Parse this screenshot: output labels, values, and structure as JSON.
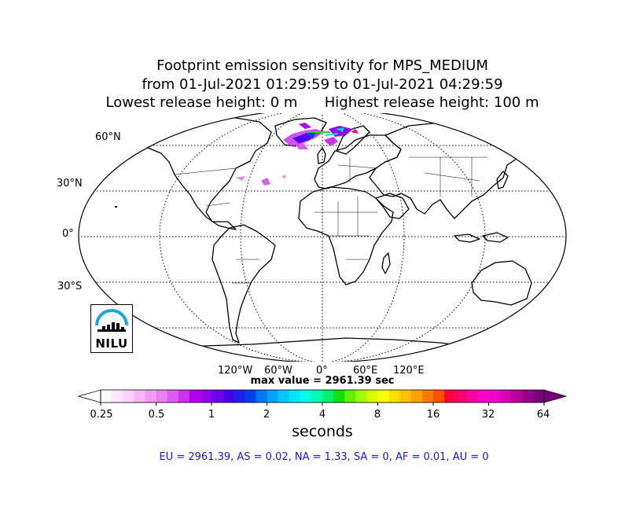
{
  "title": {
    "line1": "Footprint emission sensitivity for MPS_MEDIUM",
    "line2": "from 01-Jul-2021 01:29:59 to 01-Jul-2021 04:29:59",
    "line3_left": "Lowest release height: 0 m",
    "line3_right": "Highest release height: 100 m"
  },
  "map": {
    "projection": "Robinson",
    "lat_labels": [
      "60°N",
      "30°N",
      "0°",
      "30°S"
    ],
    "lon_labels": [
      "120°W",
      "60°W",
      "0°",
      "60°E",
      "120°E"
    ],
    "colors": {
      "coast": "#000000",
      "grid": "#000000"
    }
  },
  "max_value": "max value = 2961.39 sec",
  "colorbar": {
    "units": "seconds",
    "ticks": [
      "0.25",
      "0.5",
      "1",
      "2",
      "4",
      "8",
      "16",
      "32",
      "64"
    ],
    "colors": [
      "#ffffff",
      "#ffe8ff",
      "#ffd0ff",
      "#f8b8f8",
      "#f09cf0",
      "#e880f0",
      "#dc5cf0",
      "#cc30f0",
      "#b000f0",
      "#9400ec",
      "#7000ec",
      "#4800ec",
      "#2020ec",
      "#0040f0",
      "#0078f8",
      "#00a4ff",
      "#00c8ff",
      "#00e6ff",
      "#00ffe8",
      "#00ffb0",
      "#00f070",
      "#10e010",
      "#60f000",
      "#a0ff00",
      "#d8ff00",
      "#ffff00",
      "#ffe000",
      "#ffc000",
      "#ffa000",
      "#ff7800",
      "#ff5000",
      "#ff0040",
      "#ff0070",
      "#ff00a0",
      "#ff00c8",
      "#f000c8",
      "#d800b4",
      "#b800a0",
      "#98008c",
      "#780078"
    ]
  },
  "logo": {
    "text": "NILU",
    "arc_color": "#1aa6e8"
  },
  "regions": "EU = 2961.39,  AS = 0.02,  NA = 1.33,  SA = 0,  AF = 0.01,  AU = 0"
}
